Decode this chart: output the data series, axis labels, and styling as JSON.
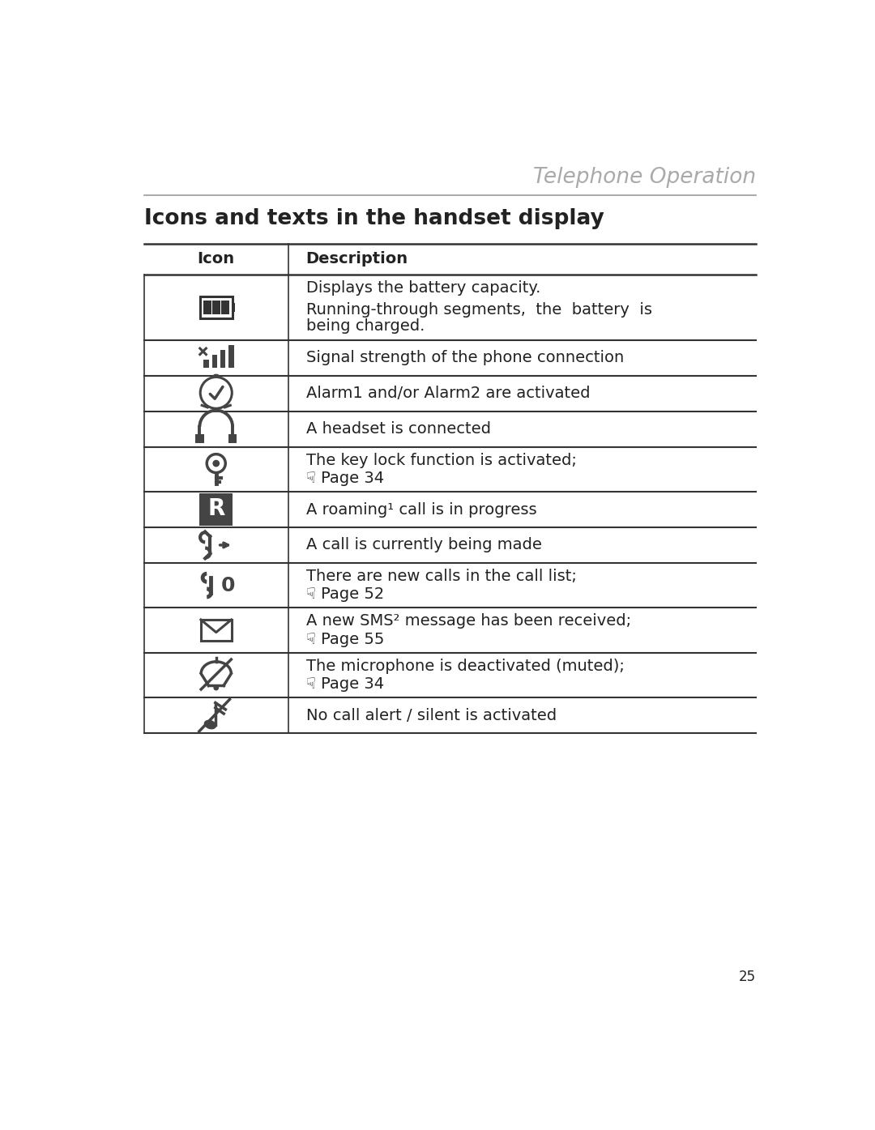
{
  "page_title": "Telephone Operation",
  "section_title": "Icons and texts in the handset display",
  "col1_header": "Icon",
  "col2_header": "Description",
  "background_color": "#ffffff",
  "title_color": "#aaaaaa",
  "text_color": "#222222",
  "line_color": "#333333",
  "page_number": "25",
  "rows": [
    {
      "icon_unicode": "battery",
      "description_lines": [
        [
          "Displays the battery capacity."
        ],
        [
          "Running-through segments,  the  battery  is",
          "being charged."
        ]
      ]
    },
    {
      "icon_unicode": "signal",
      "description_lines": [
        [
          "Signal strength of the phone connection"
        ]
      ]
    },
    {
      "icon_unicode": "alarm",
      "description_lines": [
        [
          "Alarm1 and/or Alarm2 are activated"
        ]
      ]
    },
    {
      "icon_unicode": "headset",
      "description_lines": [
        [
          "A headset is connected"
        ]
      ]
    },
    {
      "icon_unicode": "keylock",
      "description_lines": [
        [
          "The key lock function is activated;",
          "☟ Page 34"
        ]
      ]
    },
    {
      "icon_unicode": "roaming",
      "description_lines": [
        [
          "A roaming¹ call is in progress"
        ]
      ]
    },
    {
      "icon_unicode": "call_out",
      "description_lines": [
        [
          "A call is currently being made"
        ]
      ]
    },
    {
      "icon_unicode": "call_list",
      "description_lines": [
        [
          "There are new calls in the call list;",
          "☟ Page 52"
        ]
      ]
    },
    {
      "icon_unicode": "sms",
      "description_lines": [
        [
          "A new SMS² message has been received;",
          "☟ Page 55"
        ]
      ]
    },
    {
      "icon_unicode": "mute",
      "description_lines": [
        [
          "The microphone is deactivated (muted);",
          "☟ Page 34"
        ]
      ]
    },
    {
      "icon_unicode": "silent",
      "description_lines": [
        [
          "No call alert / silent is activated"
        ]
      ]
    }
  ]
}
